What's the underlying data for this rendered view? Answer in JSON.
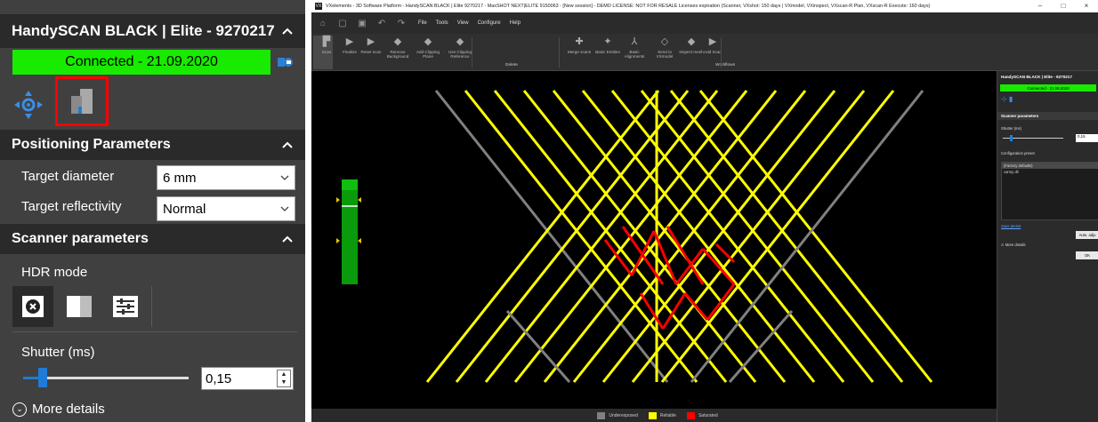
{
  "zoom_panel": {
    "title": "HandySCAN BLACK | Elite - 9270217",
    "connection_status": "Connected - 21.09.2020",
    "positioning_section": "Positioning Parameters",
    "target_diameter_label": "Target diameter",
    "target_diameter_value": "6 mm",
    "target_reflectivity_label": "Target reflectivity",
    "target_reflectivity_value": "Normal",
    "scanner_section": "Scanner parameters",
    "hdr_mode_label": "HDR mode",
    "shutter_label": "Shutter (ms)",
    "shutter_value": "0,15",
    "shutter_slider_fraction": 0.12,
    "more_details": "More details"
  },
  "app": {
    "window_title": "VXelements - 3D Software Platform - HandySCAN BLACK | Elite 9270217 - MaxSHOT NEXT|ELITE 9150063 - [New session] - DEMO LICENSE: NOT FOR RESALE Licenses expiration (Scanner, VXshot: 150 days | VXmodel, VXinspect, VXscan-R Plan, VXscan-R Execute: 160 days)",
    "window_controls": [
      "–",
      "□",
      "×"
    ],
    "menu": [
      "File",
      "Tools",
      "View",
      "Configure",
      "Help"
    ],
    "ribbon": {
      "buttons": [
        {
          "label": "Scan",
          "icon": "scan-icon"
        },
        {
          "label": "Finalize",
          "icon": "finalize-icon"
        },
        {
          "label": "Reset scan",
          "icon": "reset-scan-icon"
        },
        {
          "label": "Remove Background",
          "icon": "remove-background-icon"
        },
        {
          "label": "Add Clipping Plane",
          "icon": "clipping-plane-icon"
        },
        {
          "label": "Use Clipping Reference",
          "icon": "clipping-reference-icon"
        },
        {
          "label": "Merge scans",
          "icon": "merge-icon"
        },
        {
          "label": "Basic Entities",
          "icon": "entities-icon"
        },
        {
          "label": "Basic Alignments",
          "icon": "alignment-icon"
        },
        {
          "label": "Send to VXmodel",
          "icon": "send-icon"
        },
        {
          "label": "Inspect mesh",
          "icon": "inspect-icon"
        },
        {
          "label": "Add Scan",
          "icon": "add-scan-icon"
        }
      ],
      "group_labels": [
        "Delete",
        "Workflows"
      ]
    },
    "legend": [
      {
        "label": "Underexposed",
        "color": "#808080"
      },
      {
        "label": "Reliable",
        "color": "#ffff00"
      },
      {
        "label": "Saturated",
        "color": "#ff0000"
      }
    ],
    "dock": {
      "title": "HandySCAN BLACK | Elite - 9270217",
      "connection_status": "Connected - 21.09.2020",
      "scanner_section": "Scanner parameters",
      "shutter_label": "Shutter (ms)",
      "shutter_value": "0,15",
      "preset_label": "Configuration preset",
      "presets": [
        "(Factory defaults)",
        "canny dil"
      ],
      "save_preset": "Save preset",
      "auto_adjust": "Auto. adju",
      "more_details": "More details",
      "ok": "OK"
    }
  }
}
